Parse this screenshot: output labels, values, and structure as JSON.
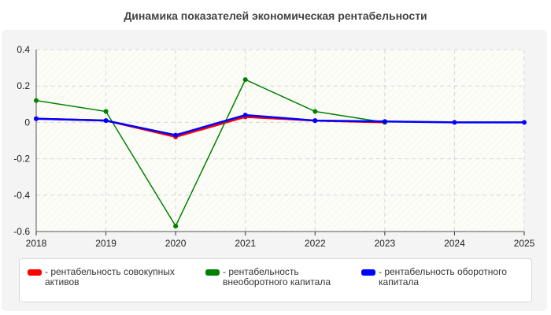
{
  "chart_data": {
    "type": "line",
    "title": "Динамика показателей экономическая рентабельности",
    "xlabel": "",
    "ylabel": "",
    "x": [
      2018,
      2019,
      2020,
      2021,
      2022,
      2023,
      2024,
      2025
    ],
    "x_tick_labels": [
      "2018",
      "2019",
      "2020",
      "2021",
      "2022",
      "2023",
      "2024",
      "2025"
    ],
    "ylim": [
      -0.6,
      0.4
    ],
    "y_ticks": [
      0.4,
      0.2,
      0,
      -0.2,
      -0.4,
      -0.6
    ],
    "y_tick_labels": [
      "0.4",
      "0.2",
      "0",
      "-0.2",
      "-0.4",
      "-0.6"
    ],
    "grid": true,
    "legend_position": "bottom",
    "series": [
      {
        "name": "- рентабельность совокупных активов",
        "color": "#ff0000",
        "x": [
          2018,
          2019,
          2020,
          2021,
          2022,
          2023
        ],
        "values": [
          0.02,
          0.01,
          -0.08,
          0.03,
          0.01,
          0.0
        ]
      },
      {
        "name": "- рентабельность внеоборотного капитала",
        "color": "#008000",
        "x": [
          2018,
          2019,
          2020,
          2021,
          2022,
          2023
        ],
        "values": [
          0.12,
          0.06,
          -0.57,
          0.235,
          0.06,
          0.0
        ]
      },
      {
        "name": "- рентабельность оборотного капитала",
        "color": "#0000ff",
        "x": [
          2018,
          2019,
          2020,
          2021,
          2022,
          2023,
          2024,
          2025
        ],
        "values": [
          0.02,
          0.01,
          -0.07,
          0.04,
          0.01,
          0.005,
          0.0,
          0.0
        ]
      }
    ]
  }
}
